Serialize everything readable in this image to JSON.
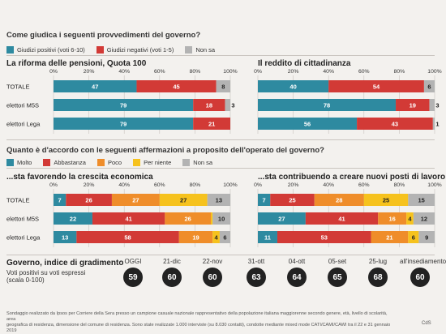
{
  "section1": {
    "question": "Come giudica i seguenti provvedimenti del governo?",
    "legend": [
      {
        "label": "Giudizi positivi (voti 6-10)",
        "color": "#2e8aa0"
      },
      {
        "label": "Giudizi negativi (voti 1-5)",
        "color": "#d23a36"
      },
      {
        "label": "Non sa",
        "color": "#b3b3b3"
      }
    ]
  },
  "section2": {
    "question": "Quanto è d'accordo con le seguenti affermazioni a proposito dell'operato del governo?",
    "legend": [
      {
        "label": "Molto",
        "color": "#2e8aa0"
      },
      {
        "label": "Abbastanza",
        "color": "#d23a36"
      },
      {
        "label": "Poco",
        "color": "#ef8d2a"
      },
      {
        "label": "Per niente",
        "color": "#f6c21d"
      },
      {
        "label": "Non sa",
        "color": "#b3b3b3"
      }
    ]
  },
  "chart_data": [
    {
      "type": "bar",
      "title": "La riforma delle pensioni, Quota 100",
      "categories": [
        "TOTALE",
        "elettori M5S",
        "elettori Lega"
      ],
      "ticks": [
        "0%",
        "20%",
        "40%",
        "60%",
        "80%",
        "100%"
      ],
      "xlim": [
        0,
        100
      ],
      "stacked": true,
      "series": [
        {
          "name": "Giudizi positivi (voti 6-10)",
          "values": [
            47,
            79,
            79
          ]
        },
        {
          "name": "Giudizi negativi (voti 1-5)",
          "values": [
            45,
            18,
            21
          ]
        },
        {
          "name": "Non sa",
          "values": [
            8,
            3,
            null
          ]
        }
      ]
    },
    {
      "type": "bar",
      "title": "Il reddito di cittadinanza",
      "categories": [
        "TOTALE",
        "elettori M5S",
        "elettori Lega"
      ],
      "ticks": [
        "0%",
        "20%",
        "40%",
        "60%",
        "80%",
        "100%"
      ],
      "xlim": [
        0,
        100
      ],
      "stacked": true,
      "series": [
        {
          "name": "Giudizi positivi (voti 6-10)",
          "values": [
            40,
            78,
            56
          ]
        },
        {
          "name": "Giudizi negativi (voti 1-5)",
          "values": [
            54,
            19,
            43
          ]
        },
        {
          "name": "Non sa",
          "values": [
            6,
            3,
            1
          ]
        }
      ]
    },
    {
      "type": "bar",
      "title": "...sta favorendo la crescita economica",
      "categories": [
        "TOTALE",
        "elettori M5S",
        "elettori Lega"
      ],
      "ticks": [
        "0%",
        "20%",
        "40%",
        "60%",
        "80%",
        "100%"
      ],
      "xlim": [
        0,
        100
      ],
      "stacked": true,
      "series": [
        {
          "name": "Molto",
          "values": [
            7,
            22,
            13
          ]
        },
        {
          "name": "Abbastanza",
          "values": [
            26,
            41,
            58
          ]
        },
        {
          "name": "Poco",
          "values": [
            27,
            26,
            19
          ]
        },
        {
          "name": "Per niente",
          "values": [
            27,
            1,
            4
          ]
        },
        {
          "name": "Non sa",
          "values": [
            13,
            10,
            6
          ]
        }
      ]
    },
    {
      "type": "bar",
      "title": "...sta contribuendo a creare nuovi posti di lavoro",
      "categories": [
        "TOTALE",
        "elettori M5S",
        "elettori Lega"
      ],
      "ticks": [
        "0%",
        "20%",
        "40%",
        "60%",
        "80%",
        "100%"
      ],
      "xlim": [
        0,
        100
      ],
      "stacked": true,
      "series": [
        {
          "name": "Molto",
          "values": [
            7,
            27,
            11
          ]
        },
        {
          "name": "Abbastanza",
          "values": [
            25,
            41,
            53
          ]
        },
        {
          "name": "Poco",
          "values": [
            28,
            16,
            21
          ]
        },
        {
          "name": "Per niente",
          "values": [
            25,
            4,
            6
          ]
        },
        {
          "name": "Non sa",
          "values": [
            15,
            12,
            9
          ]
        }
      ]
    }
  ],
  "gradimento": {
    "title": "Governo, indice di gradimento",
    "subtitle": "Voti positivi su voti espressi",
    "scale": "(scala 0-100)",
    "items": [
      {
        "date": "OGGI",
        "value": "59"
      },
      {
        "date": "21-dic",
        "value": "60"
      },
      {
        "date": "22-nov",
        "value": "60"
      },
      {
        "date": "31-ott",
        "value": "63"
      },
      {
        "date": "04-ott",
        "value": "64"
      },
      {
        "date": "05-set",
        "value": "65"
      },
      {
        "date": "25-lug",
        "value": "68"
      },
      {
        "date": "all'insediamento",
        "value": "60"
      }
    ]
  },
  "footnote": {
    "line1": "Sondaggio realizzato da Ipsos per Corriere della Sera presso un campione casuale nazionale rappresentativo della popolazione italiana maggiorenne secondo genere, età, livello di scolarità, area",
    "line2": "geografica di residenza, dimensione del comune di residenza. Sono state realizzate 1.000 interviste (su 8.030 contatti), condotte mediante mixed mode CATI/CAMI/CAWI tra il 22 e 31 gennaio 2019",
    "credit": "CdS"
  }
}
